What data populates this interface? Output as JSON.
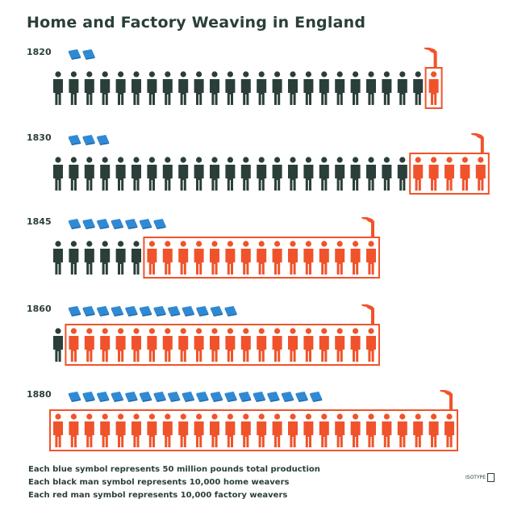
{
  "title": "Home and Factory Weaving in England",
  "colors": {
    "ink": "#2b3f3a",
    "home": "#2b3f3a",
    "factory": "#f0532b",
    "production": "#2f8ad6"
  },
  "chart_data": {
    "type": "pictograph",
    "title": "Home and Factory Weaving in England",
    "rows": [
      {
        "year": "1820",
        "production_symbols": 2,
        "home_weavers": 24,
        "factory_weavers": 1
      },
      {
        "year": "1830",
        "production_symbols": 3,
        "home_weavers": 23,
        "factory_weavers": 5
      },
      {
        "year": "1845",
        "production_symbols": 7,
        "home_weavers": 6,
        "factory_weavers": 15
      },
      {
        "year": "1860",
        "production_symbols": 12,
        "home_weavers": 1,
        "factory_weavers": 20
      },
      {
        "year": "1880",
        "production_symbols": 18,
        "home_weavers": 0,
        "factory_weavers": 26
      }
    ],
    "units": {
      "production_symbol": 50000000,
      "home_weaver_symbol": 10000,
      "factory_weaver_symbol": 10000
    }
  },
  "legend": {
    "blue": "Each blue symbol represents 50 million pounds total production",
    "black": "Each black man symbol represents 10,000 home weavers",
    "red": "Each red man symbol represents 10,000 factory weavers"
  },
  "credit": "ISOTYPE"
}
